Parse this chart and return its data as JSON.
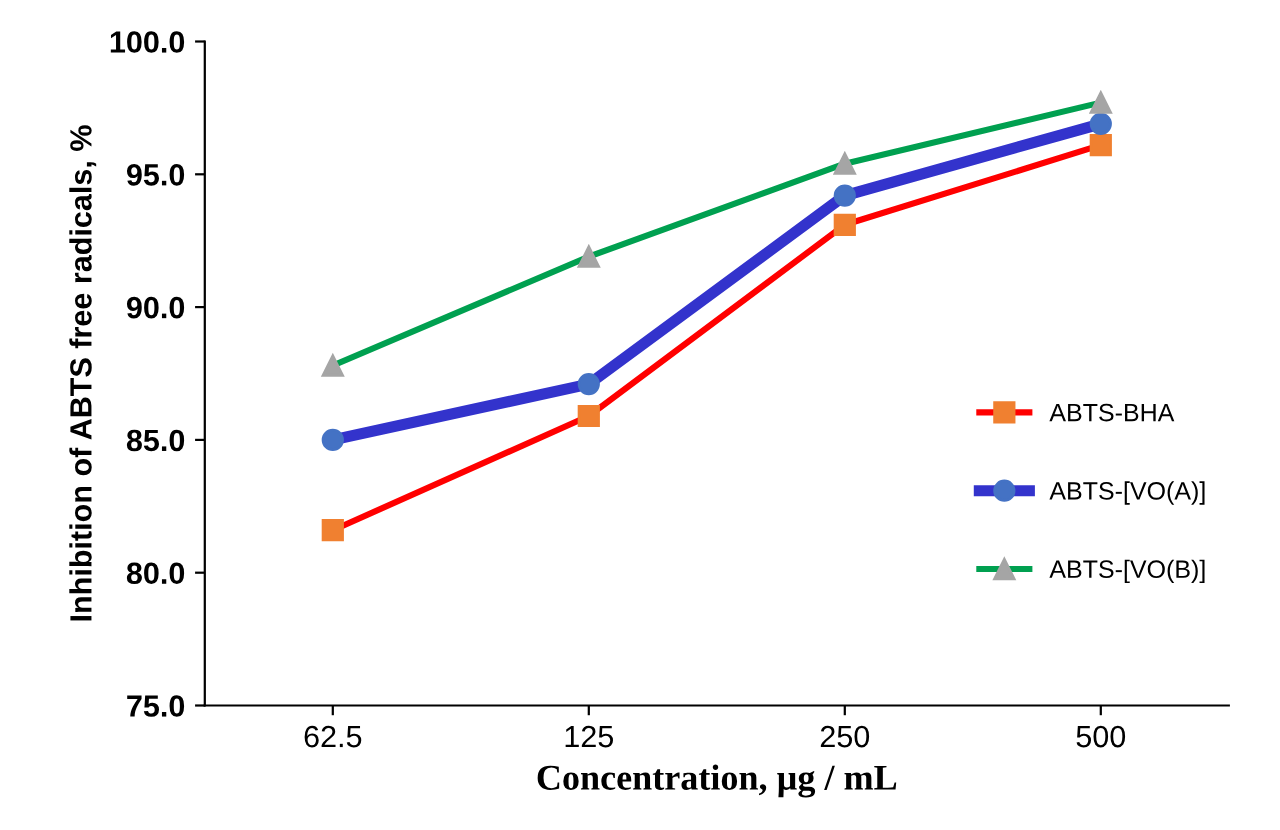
{
  "chart_data": {
    "type": "line",
    "categories": [
      "62.5",
      "125",
      "250",
      "500"
    ],
    "xlabel": "Concentration, µg / mL",
    "ylabel": "Inhibition of ABTS free radicals, %",
    "ylim": [
      75,
      100
    ],
    "yticks": [
      {
        "value": 75,
        "label": "75.0"
      },
      {
        "value": 80,
        "label": "80.0"
      },
      {
        "value": 85,
        "label": "85.0"
      },
      {
        "value": 90,
        "label": "90.0"
      },
      {
        "value": 95,
        "label": "95.0"
      },
      {
        "value": 100,
        "label": "100.0"
      }
    ],
    "grid": false,
    "legend": "right",
    "series": [
      {
        "name": "ABTS-BHA",
        "color": "#ff0000",
        "marker": "square",
        "values": [
          81.6,
          85.9,
          93.1,
          96.1
        ]
      },
      {
        "name": "ABTS-[VO(A)]",
        "color": "#3333cc",
        "marker": "circle",
        "values": [
          85.0,
          87.1,
          94.2,
          96.9
        ]
      },
      {
        "name": "ABTS-[VO(B)]",
        "color": "#00a050",
        "marker": "triangle",
        "values": [
          87.8,
          91.9,
          95.4,
          97.7
        ]
      }
    ]
  }
}
